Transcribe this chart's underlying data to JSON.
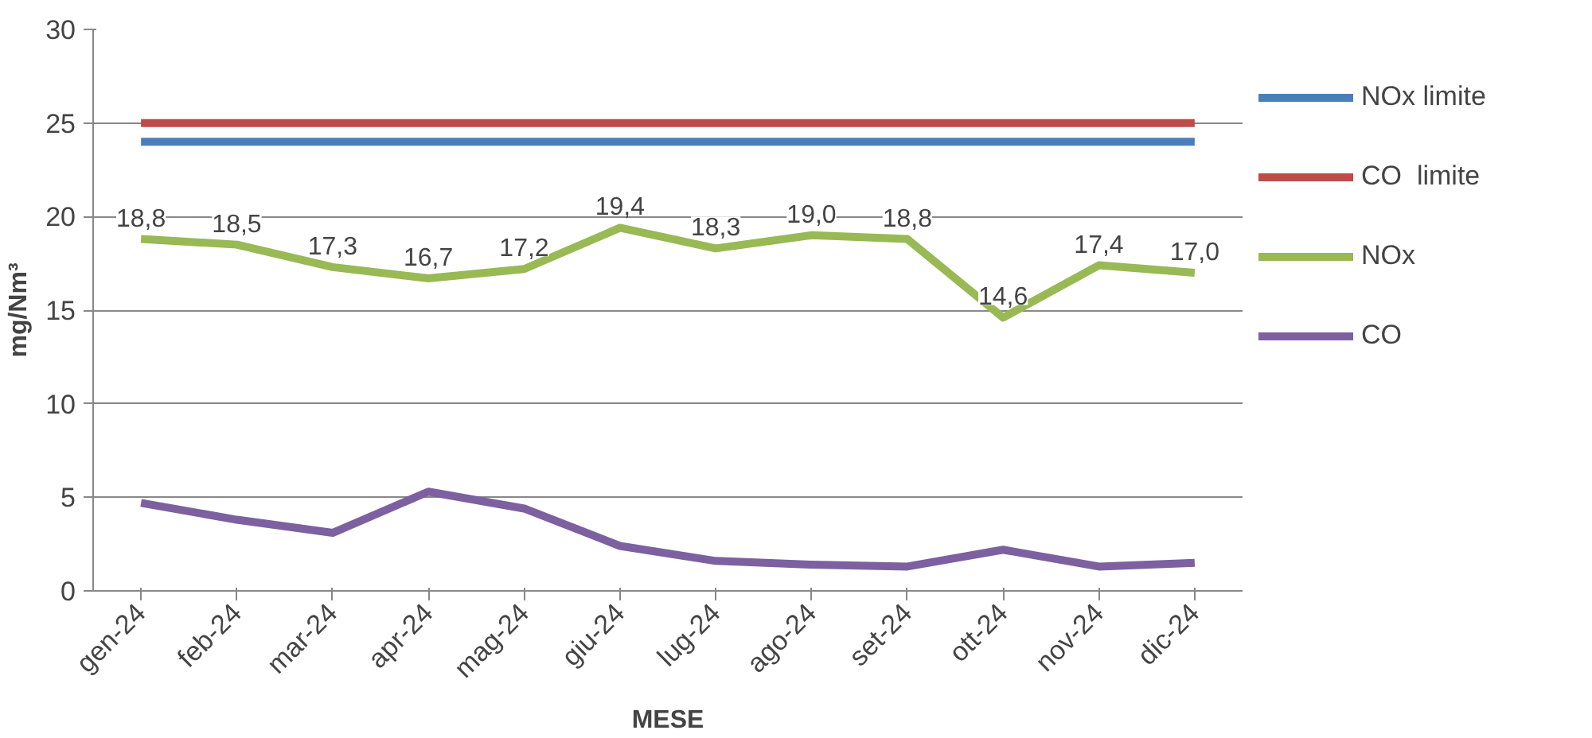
{
  "chart_data": {
    "type": "line",
    "xlabel": "MESE",
    "ylabel": "mg/Nm³",
    "categories": [
      "gen-24",
      "feb-24",
      "mar-24",
      "apr-24",
      "mag-24",
      "giu-24",
      "lug-24",
      "ago-24",
      "set-24",
      "ott-24",
      "nov-24",
      "dic-24"
    ],
    "ylim": [
      0,
      30
    ],
    "yticks": [
      0,
      5,
      10,
      15,
      20,
      25,
      30
    ],
    "grid": "y",
    "legend": "right",
    "marker": "none",
    "line_style": "solid",
    "series": [
      {
        "name": "NOx limite",
        "color": "#4a7ebb",
        "values": [
          24,
          24,
          24,
          24,
          24,
          24,
          24,
          24,
          24,
          24,
          24,
          24
        ]
      },
      {
        "name": "CO  limite",
        "color": "#be4b48",
        "values": [
          25,
          25,
          25,
          25,
          25,
          25,
          25,
          25,
          25,
          25,
          25,
          25
        ]
      },
      {
        "name": "NOx",
        "color": "#98b954",
        "values": [
          18.8,
          18.5,
          17.3,
          16.7,
          17.2,
          19.4,
          18.3,
          19.0,
          18.8,
          14.6,
          17.4,
          17.0
        ],
        "value_labels": [
          "18,8",
          "18,5",
          "17,3",
          "16,7",
          "17,2",
          "19,4",
          "18,3",
          "19,0",
          "18,8",
          "14,6",
          "17,4",
          "17,0"
        ]
      },
      {
        "name": "CO",
        "color": "#7d60a0",
        "values": [
          4.7,
          3.8,
          3.1,
          5.3,
          4.4,
          2.4,
          1.6,
          1.4,
          1.3,
          2.2,
          1.3,
          1.5
        ]
      }
    ]
  }
}
